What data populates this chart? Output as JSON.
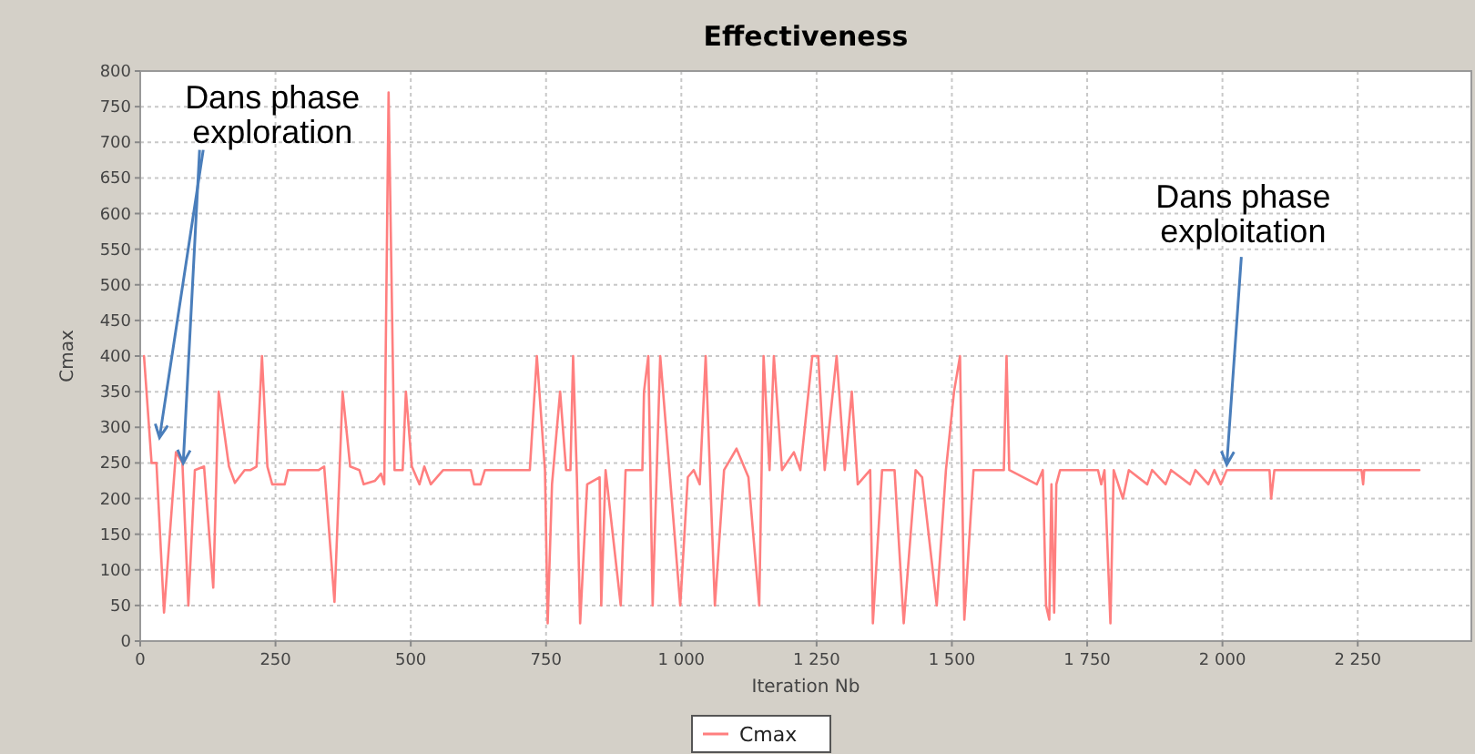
{
  "chart_data": {
    "type": "line",
    "title": "Effectiveness",
    "xlabel": "Iteration Nb",
    "ylabel": "Cmax",
    "xlim": [
      0,
      2460
    ],
    "ylim": [
      0,
      800
    ],
    "xticks": [
      0,
      250,
      500,
      750,
      {
        "value": 1000,
        "label": "1 000"
      },
      {
        "value": 1250,
        "label": "1 250"
      },
      {
        "value": 1500,
        "label": "1 500"
      },
      {
        "value": 1750,
        "label": "1 750"
      },
      {
        "value": 2000,
        "label": "2 000"
      },
      {
        "value": 2250,
        "label": "2 250"
      }
    ],
    "yticks": [
      0,
      50,
      100,
      150,
      200,
      250,
      300,
      350,
      400,
      450,
      500,
      550,
      600,
      650,
      700,
      750,
      800
    ],
    "grid": true,
    "legend": "bottom",
    "marker": "none",
    "line_style": "solid",
    "annotations": [
      {
        "text": "Dans phase exploration",
        "x": 66,
        "y": 265
      },
      {
        "text": "Dans phase exploitation",
        "x": 2008,
        "y": 240
      }
    ],
    "series": [
      {
        "name": "Cmax",
        "color": "#ff7f7f",
        "x": [
          7,
          21,
          30,
          44,
          66,
          78,
          89,
          101,
          118,
          135,
          145,
          164,
          175,
          193,
          204,
          215,
          225,
          235,
          244,
          267,
          273,
          330,
          340,
          359,
          374,
          388,
          405,
          413,
          434,
          445,
          451,
          459,
          470,
          485,
          491,
          502,
          516,
          525,
          537,
          560,
          611,
          617,
          629,
          637,
          686,
          720,
          733,
          748,
          753,
          761,
          776,
          787,
          795,
          800,
          807,
          813,
          826,
          849,
          852,
          860,
          888,
          897,
          928,
          931,
          939,
          947,
          961,
          978,
          998,
          1012,
          1023,
          1034,
          1045,
          1062,
          1079,
          1102,
          1124,
          1144,
          1152,
          1163,
          1171,
          1186,
          1208,
          1220,
          1242,
          1253,
          1265,
          1287,
          1302,
          1315,
          1326,
          1349,
          1354,
          1371,
          1394,
          1411,
          1433,
          1445,
          1472,
          1489,
          1504,
          1515,
          1523,
          1540,
          1596,
          1601,
          1606,
          1657,
          1668,
          1674,
          1680,
          1684,
          1689,
          1693,
          1700,
          1770,
          1776,
          1782,
          1793,
          1799,
          1816,
          1827,
          1861,
          1870,
          1895,
          1905,
          1940,
          1950,
          1974,
          1985,
          1997,
          2008,
          2087,
          2090,
          2096,
          2257,
          2260,
          2262,
          2364
        ],
        "values": [
          400,
          250,
          250,
          40,
          265,
          250,
          50,
          240,
          245,
          75,
          350,
          245,
          222,
          240,
          240,
          245,
          400,
          245,
          220,
          220,
          240,
          240,
          245,
          55,
          350,
          245,
          240,
          220,
          225,
          235,
          220,
          770,
          240,
          240,
          350,
          245,
          220,
          245,
          220,
          240,
          240,
          220,
          220,
          240,
          240,
          240,
          400,
          240,
          25,
          220,
          350,
          240,
          240,
          400,
          230,
          25,
          220,
          230,
          50,
          240,
          50,
          240,
          240,
          350,
          400,
          50,
          400,
          240,
          50,
          230,
          240,
          220,
          400,
          50,
          240,
          270,
          230,
          50,
          400,
          240,
          400,
          240,
          265,
          240,
          400,
          400,
          240,
          400,
          240,
          350,
          220,
          240,
          25,
          240,
          240,
          25,
          240,
          230,
          50,
          240,
          350,
          400,
          30,
          240,
          240,
          400,
          240,
          220,
          240,
          50,
          30,
          220,
          40,
          220,
          240,
          240,
          220,
          240,
          25,
          240,
          200,
          240,
          220,
          240,
          220,
          240,
          220,
          240,
          220,
          240,
          220,
          240,
          240,
          200,
          240,
          240,
          220,
          240,
          240
        ]
      }
    ]
  }
}
